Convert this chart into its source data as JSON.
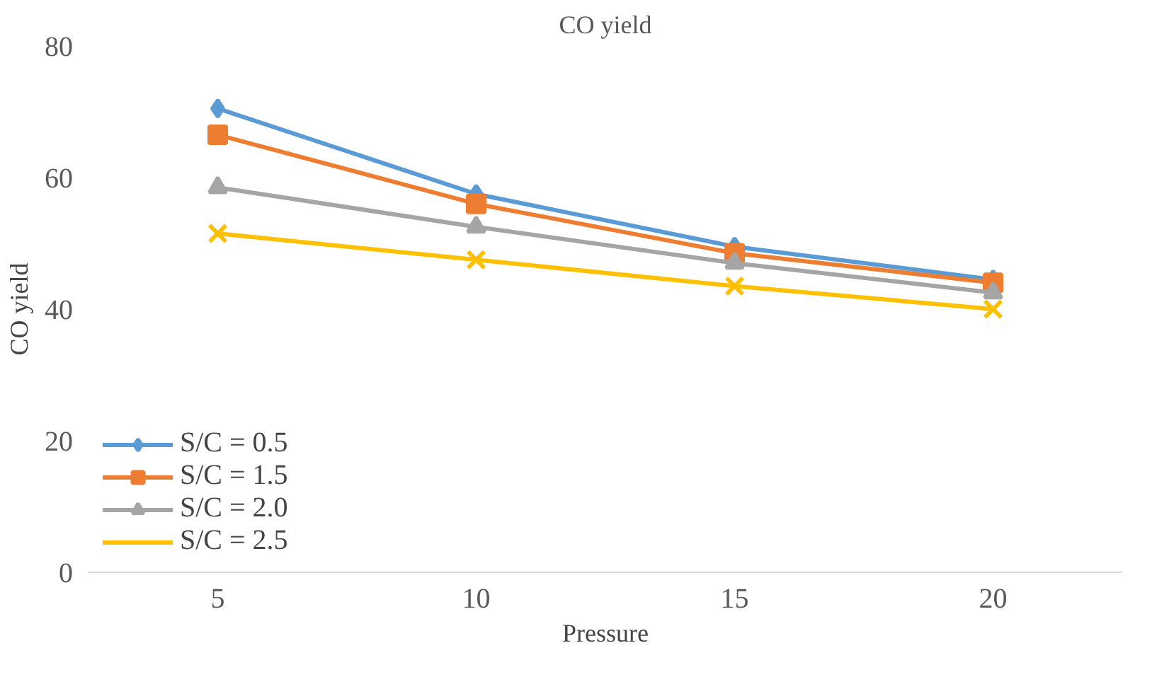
{
  "chart_data": {
    "type": "line",
    "title": "CO yield",
    "xlabel": "Pressure",
    "ylabel": "CO yield",
    "categories": [
      "5",
      "10",
      "15",
      "20"
    ],
    "ylim": [
      0,
      80
    ],
    "yticks": [
      0,
      20,
      40,
      60,
      80
    ],
    "grid": false,
    "legend": "bottom left",
    "series": [
      {
        "name": "S/C = 0.5",
        "color": "#5b9bd5",
        "marker": "diamond",
        "values": [
          70.5,
          57.5,
          49.5,
          44.5
        ]
      },
      {
        "name": "S/C = 1.5",
        "color": "#ed7d31",
        "marker": "square",
        "values": [
          66.5,
          56,
          48.5,
          44
        ]
      },
      {
        "name": "S/C = 2.0",
        "color": "#a5a5a5",
        "marker": "triangle",
        "values": [
          58.5,
          52.5,
          47,
          42.5
        ]
      },
      {
        "name": "S/C = 2.5",
        "color": "#ffc000",
        "marker": "cross",
        "values": [
          51.5,
          47.5,
          43.5,
          40
        ]
      }
    ]
  }
}
